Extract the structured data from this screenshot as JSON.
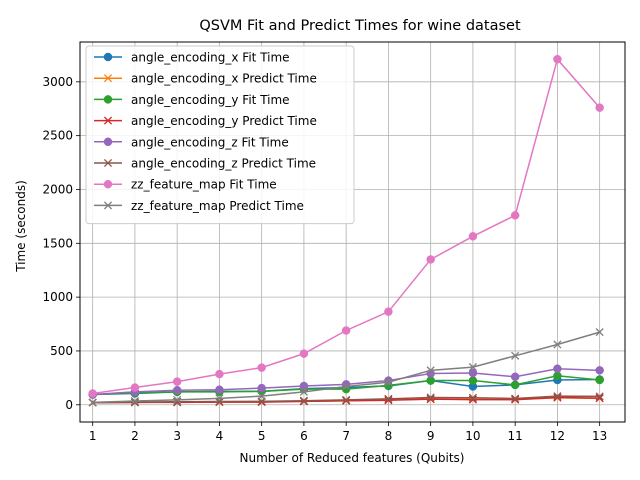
{
  "chart_data": {
    "type": "line",
    "title": "QSVM Fit and Predict Times for wine dataset",
    "xlabel": "Number of Reduced features (Qubits)",
    "ylabel": "Time (seconds)",
    "x": [
      1,
      2,
      3,
      4,
      5,
      6,
      7,
      8,
      9,
      10,
      11,
      12,
      13
    ],
    "xlim": [
      0.7,
      13.6
    ],
    "ylim": [
      -160,
      3370
    ],
    "yticks": [
      0,
      500,
      1000,
      1500,
      2000,
      2500,
      3000
    ],
    "grid": true,
    "legend_position": "upper-left",
    "series": [
      {
        "name": "angle_encoding_x Fit Time",
        "color": "#1f77b4",
        "marker": "o",
        "values": [
          95,
          105,
          120,
          125,
          125,
          150,
          160,
          175,
          225,
          170,
          185,
          230,
          235
        ]
      },
      {
        "name": "angle_encoding_x Predict Time",
        "color": "#ff7f0e",
        "marker": "x",
        "values": [
          20,
          22,
          25,
          25,
          28,
          32,
          38,
          45,
          52,
          50,
          48,
          65,
          60
        ]
      },
      {
        "name": "angle_encoding_y Fit Time",
        "color": "#2ca02c",
        "marker": "o",
        "values": [
          95,
          110,
          120,
          120,
          125,
          145,
          145,
          180,
          225,
          225,
          185,
          270,
          230
        ]
      },
      {
        "name": "angle_encoding_y Predict Time",
        "color": "#d62728",
        "marker": "x",
        "values": [
          20,
          22,
          22,
          25,
          25,
          32,
          38,
          42,
          52,
          48,
          48,
          68,
          62
        ]
      },
      {
        "name": "angle_encoding_z Fit Time",
        "color": "#9467bd",
        "marker": "o",
        "values": [
          95,
          120,
          135,
          140,
          155,
          175,
          190,
          225,
          290,
          295,
          260,
          335,
          320
        ]
      },
      {
        "name": "angle_encoding_z Predict Time",
        "color": "#8c564b",
        "marker": "x",
        "values": [
          20,
          25,
          28,
          30,
          32,
          38,
          45,
          55,
          68,
          65,
          58,
          80,
          78
        ]
      },
      {
        "name": "zz_feature_map Fit Time",
        "color": "#e377c2",
        "marker": "o",
        "values": [
          105,
          160,
          215,
          285,
          345,
          475,
          690,
          865,
          1350,
          1565,
          1760,
          3210,
          2760
        ]
      },
      {
        "name": "zz_feature_map Predict Time",
        "color": "#7f7f7f",
        "marker": "x",
        "values": [
          22,
          35,
          45,
          60,
          80,
          120,
          170,
          210,
          320,
          350,
          455,
          560,
          675
        ]
      }
    ]
  }
}
